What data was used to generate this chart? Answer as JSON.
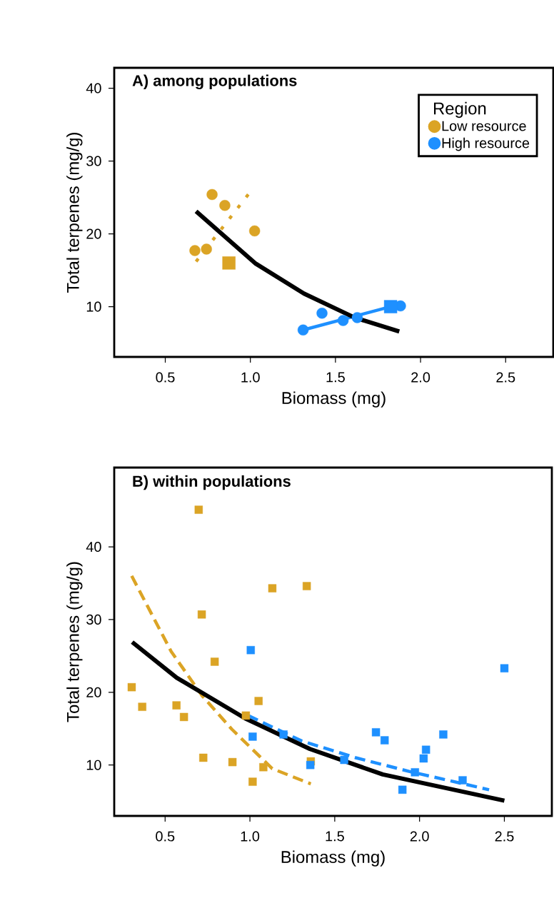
{
  "chart_data": [
    {
      "type": "scatter",
      "title": "A) among populations",
      "xlabel": "Biomass (mg)",
      "ylabel": "Total terpenes (mg/g)",
      "xlim": [
        0.2,
        2.78
      ],
      "ylim": [
        3.1,
        42.8
      ],
      "xticks": [
        {
          "value": 0.5,
          "label": "0.5"
        },
        {
          "value": 1,
          "label": "1.0"
        },
        {
          "value": 1.5,
          "label": "1.5"
        },
        {
          "value": 2,
          "label": "2.0"
        },
        {
          "value": 2.5,
          "label": "2.5"
        }
      ],
      "yticks": [
        10,
        20,
        30,
        40
      ],
      "legend": "top right",
      "legend_title": "Region",
      "series": [
        {
          "name": "Low resource",
          "color": "#dba425",
          "marker": "circle",
          "x": [
            0.775,
            0.85,
            1.025,
            0.674,
            0.742
          ],
          "values": [
            25.4,
            23.9,
            20.4,
            17.7,
            17.9
          ]
        },
        {
          "name": "High resource",
          "color": "#1e90ff",
          "marker": "circle",
          "x": [
            1.421,
            1.31,
            1.545,
            1.628,
            1.882
          ],
          "values": [
            9.1,
            6.8,
            8.1,
            8.5,
            10.1
          ]
        },
        {
          "color": "#dba425",
          "marker": "square",
          "x": [
            0.874
          ],
          "values": [
            16.0
          ]
        },
        {
          "color": "#1e90ff",
          "marker": "square",
          "x": [
            1.824
          ],
          "values": [
            10.0
          ]
        },
        {
          "type": "line",
          "color": "#dba425",
          "line_style": "dotted",
          "x": [
            0.681,
            0.991
          ],
          "values": [
            16.2,
            25.5
          ]
        },
        {
          "type": "line",
          "color": "#1e90ff",
          "line_style": "solid",
          "x": [
            1.31,
            1.824
          ],
          "values": [
            6.8,
            10.0
          ]
        },
        {
          "type": "line",
          "color": "#000000",
          "line_style": "solid",
          "x": [
            0.681,
            1.032,
            1.315,
            1.612,
            1.875
          ],
          "values": [
            23.1,
            15.9,
            11.8,
            8.5,
            6.6
          ]
        }
      ]
    },
    {
      "type": "scatter",
      "title": "B) within populations",
      "xlabel": "Biomass (mg)",
      "ylabel": "Total terpenes (mg/g)",
      "xlim": [
        0.2,
        2.78
      ],
      "ylim": [
        3.0,
        50.9
      ],
      "xticks": [
        {
          "value": 0.5,
          "label": "0.5"
        },
        {
          "value": 1,
          "label": "1.0"
        },
        {
          "value": 1.5,
          "label": "1.5"
        },
        {
          "value": 2,
          "label": "2.0"
        },
        {
          "value": 2.5,
          "label": "2.5"
        }
      ],
      "yticks": [
        10,
        20,
        30,
        40
      ],
      "series": [
        {
          "color": "#dba425",
          "marker": "square",
          "x": [
            0.698,
            0.303,
            0.365,
            1.132,
            1.335,
            0.716,
            0.792,
            0.567,
            0.611,
            1.051,
            0.976,
            0.725,
            0.897,
            1.079,
            1.016,
            1.359
          ],
          "values": [
            45.1,
            20.7,
            18.0,
            34.3,
            34.6,
            30.7,
            24.2,
            18.2,
            16.6,
            18.8,
            16.8,
            11.0,
            10.4,
            9.7,
            7.7,
            10.5
          ]
        },
        {
          "color": "#1e90ff",
          "marker": "square",
          "x": [
            1.005,
            2.5,
            1.016,
            1.198,
            1.356,
            1.556,
            1.743,
            1.794,
            2.14,
            2.038,
            2.024,
            1.973,
            2.254,
            1.899
          ],
          "values": [
            25.8,
            23.3,
            13.9,
            14.2,
            10.0,
            10.7,
            14.5,
            13.4,
            14.2,
            12.1,
            10.9,
            9.0,
            7.9,
            6.6
          ]
        },
        {
          "type": "line",
          "color": "#dba425",
          "line_style": "dashed",
          "x": [
            0.303,
            0.536,
            0.719,
            0.894,
            1.132,
            1.359
          ],
          "values": [
            36.0,
            25.6,
            19.5,
            14.9,
            9.5,
            7.4
          ]
        },
        {
          "type": "line",
          "color": "#1e90ff",
          "line_style": "dashed",
          "x": [
            0.989,
            1.306,
            1.624,
            1.942,
            2.41
          ],
          "values": [
            16.8,
            13.3,
            11.0,
            9.1,
            6.6
          ]
        },
        {
          "type": "line",
          "color": "#000000",
          "line_style": "solid",
          "x": [
            0.306,
            0.568,
            0.973,
            1.354,
            1.783,
            2.5
          ],
          "values": [
            26.9,
            22.0,
            16.4,
            12.2,
            8.7,
            5.1
          ]
        }
      ]
    }
  ]
}
